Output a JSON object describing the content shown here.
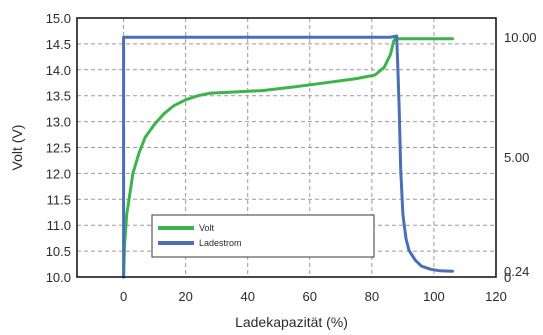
{
  "chart_data": {
    "type": "line",
    "title": "",
    "xlabel": "Ladekapazität (%)",
    "ylabel": "Volt (V)",
    "xlim": [
      -15,
      120
    ],
    "ylim": [
      10.0,
      15.0
    ],
    "y2lim": [
      0,
      10.8
    ],
    "grid": true,
    "x_ticks": [
      0,
      20,
      40,
      60,
      80,
      100,
      120
    ],
    "x_tick_labels": [
      "0",
      "20",
      "40",
      "60",
      "80",
      "100",
      "120"
    ],
    "y_ticks": [
      10.0,
      10.5,
      11.0,
      11.5,
      12.0,
      12.5,
      13.0,
      13.5,
      14.0,
      14.5,
      15.0
    ],
    "y_tick_labels": [
      "10.0",
      "10.5",
      "11.0",
      "11.5",
      "12.0",
      "12.5",
      "13.0",
      "13.5",
      "14.0",
      "14.5",
      "15.0"
    ],
    "y2_ticks": [
      0,
      0.24,
      5.0,
      10.0
    ],
    "y2_tick_labels": [
      "0",
      "0.24",
      "5.00",
      "10.00"
    ],
    "legend": {
      "placement": "bottom-center",
      "entries": [
        {
          "name": "Volt",
          "color": "#3cb44b"
        },
        {
          "name": "Ladestrom",
          "color": "#4a6fb5"
        }
      ]
    },
    "series": [
      {
        "name": "Volt",
        "axis": "left",
        "color": "#3cb44b",
        "x": [
          0,
          0.3,
          1,
          2,
          3,
          5,
          7,
          10,
          13,
          16,
          20,
          24,
          28,
          35,
          45,
          55,
          65,
          75,
          81,
          84,
          86,
          87,
          87.5,
          88,
          95,
          106
        ],
        "y": [
          10.0,
          10.6,
          11.2,
          11.6,
          12.0,
          12.4,
          12.7,
          12.95,
          13.15,
          13.3,
          13.42,
          13.5,
          13.55,
          13.57,
          13.6,
          13.67,
          13.75,
          13.83,
          13.9,
          14.05,
          14.3,
          14.55,
          14.6,
          14.6,
          14.6,
          14.6
        ]
      },
      {
        "name": "Ladestrom",
        "axis": "right",
        "color": "#4a6fb5",
        "x": [
          0,
          0,
          86,
          88,
          88.3,
          88.8,
          89.3,
          90,
          91,
          92,
          94,
          96,
          99,
          102,
          106
        ],
        "y": [
          0,
          10.0,
          10.0,
          10.05,
          9.0,
          7.0,
          4.5,
          2.6,
          1.6,
          1.1,
          0.7,
          0.45,
          0.32,
          0.26,
          0.24
        ]
      }
    ]
  }
}
